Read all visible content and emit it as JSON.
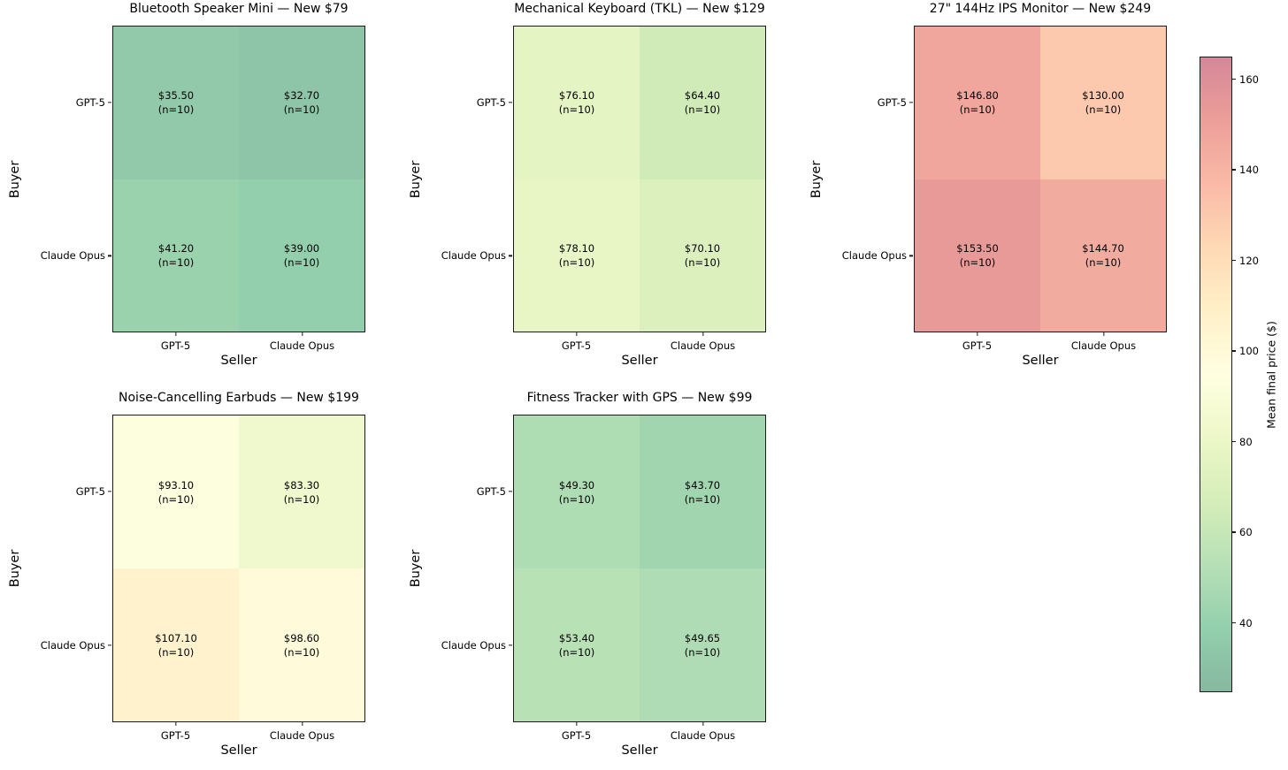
{
  "chart_data": {
    "type": "heatmap",
    "layout": "2x3 grid of 2x2 buyer-vs-seller heatmaps with one shared vertical colorbar on the right; bottom-right grid slot empty",
    "grid": {
      "row_axis_label": "Buyer",
      "col_axis_label": "Seller",
      "row_categories": [
        "GPT-5",
        "Claude Opus"
      ],
      "col_categories": [
        "GPT-5",
        "Claude Opus"
      ]
    },
    "colormap": {
      "name": "RdYlGn_r",
      "vmin": 24.7,
      "vmax": 165.0,
      "alpha": 0.47,
      "anchors": [
        "#a50026",
        "#d73027",
        "#f46d43",
        "#fdae61",
        "#fee08b",
        "#ffffbf",
        "#d9ef8b",
        "#a6d96a",
        "#66bd63",
        "#1a9850",
        "#006837"
      ]
    },
    "colorbar": {
      "label": "Mean final price ($)",
      "ticks": [
        "160",
        "140",
        "120",
        "100",
        "80",
        "60",
        "40"
      ],
      "tick_values": [
        160,
        140,
        120,
        100,
        80,
        60,
        40
      ]
    },
    "panels": [
      {
        "title": "Bluetooth Speaker Mini — New $79",
        "xlabel": "Seller",
        "ylabel": "Buyer",
        "yticks": [
          "GPT-5",
          "Claude Opus"
        ],
        "xticks": [
          "GPT-5",
          "Claude Opus"
        ],
        "cells": [
          {
            "buyer": "GPT-5",
            "seller": "GPT-5",
            "value": 35.5,
            "price": "$35.50",
            "n": "(n=10)"
          },
          {
            "buyer": "GPT-5",
            "seller": "Claude Opus",
            "value": 32.7,
            "price": "$32.70",
            "n": "(n=10)"
          },
          {
            "buyer": "Claude Opus",
            "seller": "GPT-5",
            "value": 41.2,
            "price": "$41.20",
            "n": "(n=10)"
          },
          {
            "buyer": "Claude Opus",
            "seller": "Claude Opus",
            "value": 39.0,
            "price": "$39.00",
            "n": "(n=10)"
          }
        ]
      },
      {
        "title": "Mechanical Keyboard (TKL) — New $129",
        "xlabel": "Seller",
        "ylabel": "Buyer",
        "yticks": [
          "GPT-5",
          "Claude Opus"
        ],
        "xticks": [
          "GPT-5",
          "Claude Opus"
        ],
        "cells": [
          {
            "buyer": "GPT-5",
            "seller": "GPT-5",
            "value": 76.1,
            "price": "$76.10",
            "n": "(n=10)"
          },
          {
            "buyer": "GPT-5",
            "seller": "Claude Opus",
            "value": 64.4,
            "price": "$64.40",
            "n": "(n=10)"
          },
          {
            "buyer": "Claude Opus",
            "seller": "GPT-5",
            "value": 78.1,
            "price": "$78.10",
            "n": "(n=10)"
          },
          {
            "buyer": "Claude Opus",
            "seller": "Claude Opus",
            "value": 70.1,
            "price": "$70.10",
            "n": "(n=10)"
          }
        ]
      },
      {
        "title": "27\" 144Hz IPS Monitor — New $249",
        "xlabel": "Seller",
        "ylabel": "Buyer",
        "yticks": [
          "GPT-5",
          "Claude Opus"
        ],
        "xticks": [
          "GPT-5",
          "Claude Opus"
        ],
        "cells": [
          {
            "buyer": "GPT-5",
            "seller": "GPT-5",
            "value": 146.8,
            "price": "$146.80",
            "n": "(n=10)"
          },
          {
            "buyer": "GPT-5",
            "seller": "Claude Opus",
            "value": 130.0,
            "price": "$130.00",
            "n": "(n=10)"
          },
          {
            "buyer": "Claude Opus",
            "seller": "GPT-5",
            "value": 153.5,
            "price": "$153.50",
            "n": "(n=10)"
          },
          {
            "buyer": "Claude Opus",
            "seller": "Claude Opus",
            "value": 144.7,
            "price": "$144.70",
            "n": "(n=10)"
          }
        ]
      },
      {
        "title": "Noise-Cancelling Earbuds — New $199",
        "xlabel": "Seller",
        "ylabel": "Buyer",
        "yticks": [
          "GPT-5",
          "Claude Opus"
        ],
        "xticks": [
          "GPT-5",
          "Claude Opus"
        ],
        "cells": [
          {
            "buyer": "GPT-5",
            "seller": "GPT-5",
            "value": 93.1,
            "price": "$93.10",
            "n": "(n=10)"
          },
          {
            "buyer": "GPT-5",
            "seller": "Claude Opus",
            "value": 83.3,
            "price": "$83.30",
            "n": "(n=10)"
          },
          {
            "buyer": "Claude Opus",
            "seller": "GPT-5",
            "value": 107.1,
            "price": "$107.10",
            "n": "(n=10)"
          },
          {
            "buyer": "Claude Opus",
            "seller": "Claude Opus",
            "value": 98.6,
            "price": "$98.60",
            "n": "(n=10)"
          }
        ]
      },
      {
        "title": "Fitness Tracker with GPS — New $99",
        "xlabel": "Seller",
        "ylabel": "Buyer",
        "yticks": [
          "GPT-5",
          "Claude Opus"
        ],
        "xticks": [
          "GPT-5",
          "Claude Opus"
        ],
        "cells": [
          {
            "buyer": "GPT-5",
            "seller": "GPT-5",
            "value": 49.3,
            "price": "$49.30",
            "n": "(n=10)"
          },
          {
            "buyer": "GPT-5",
            "seller": "Claude Opus",
            "value": 43.7,
            "price": "$43.70",
            "n": "(n=10)"
          },
          {
            "buyer": "Claude Opus",
            "seller": "GPT-5",
            "value": 53.4,
            "price": "$53.40",
            "n": "(n=10)"
          },
          {
            "buyer": "Claude Opus",
            "seller": "Claude Opus",
            "value": 49.65,
            "price": "$49.65",
            "n": "(n=10)"
          }
        ]
      }
    ]
  }
}
